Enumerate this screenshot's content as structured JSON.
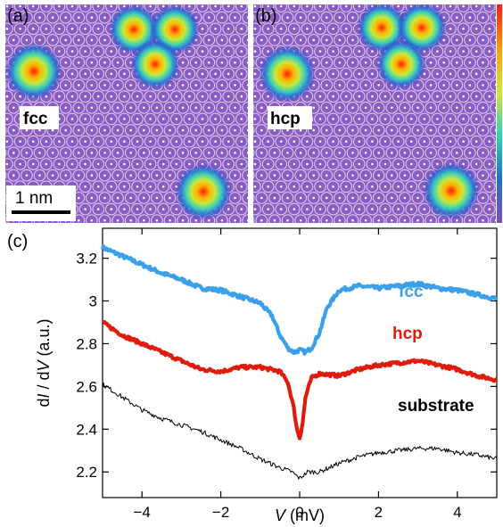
{
  "figure": {
    "panel_a": {
      "label": "(a)",
      "site_label": "fcc"
    },
    "panel_b": {
      "label": "(b)",
      "site_label": "hcp"
    },
    "panel_c": {
      "label": "(c)"
    },
    "scale_bar": {
      "label": "1 nm"
    },
    "colors": {
      "lattice_bg": "#8a5cc4",
      "atom_ring": "#ffffff",
      "fcc": "#3aa0ea",
      "hcp": "#e01b0e",
      "substrate": "#000000"
    }
  },
  "chart_data": {
    "type": "line",
    "xlabel_italic": "V",
    "xlabel_unit": " (mV)",
    "ylabel_d1": "d",
    "ylabel_i": "I",
    "ylabel_mid": " / d",
    "ylabel_v": "V",
    "ylabel_unit": " (a.u.)",
    "xlim": [
      -5,
      5
    ],
    "ylim": [
      2.08,
      3.34
    ],
    "xticks": [
      -4,
      -2,
      0,
      2,
      4
    ],
    "xtick_labels": [
      "−4",
      "−2",
      "0",
      "2",
      "4"
    ],
    "yticks": [
      2.2,
      2.4,
      2.6,
      2.8,
      3.0,
      3.2
    ],
    "ytick_labels": [
      "2.2",
      "2.4",
      "2.6",
      "2.8",
      "3",
      "3.2"
    ],
    "grid": false,
    "series": [
      {
        "name": "fcc",
        "color": "#3aa0ea",
        "x": [
          -5,
          -4.5,
          -4,
          -3.5,
          -3,
          -2.5,
          -2,
          -1.5,
          -1,
          -0.7,
          -0.5,
          -0.3,
          -0.15,
          0,
          0.15,
          0.3,
          0.5,
          0.7,
          1,
          1.5,
          2,
          2.5,
          3,
          3.5,
          4,
          4.5,
          5
        ],
        "y": [
          3.25,
          3.21,
          3.17,
          3.13,
          3.1,
          3.06,
          3.05,
          3.02,
          2.99,
          2.93,
          2.84,
          2.78,
          2.76,
          2.77,
          2.76,
          2.78,
          2.85,
          2.97,
          3.05,
          3.07,
          3.06,
          3.07,
          3.08,
          3.06,
          3.05,
          3.03,
          3.01
        ]
      },
      {
        "name": "hcp",
        "color": "#e01b0e",
        "x": [
          -5,
          -4.5,
          -4,
          -3.5,
          -3,
          -2.5,
          -2,
          -1.5,
          -1,
          -0.5,
          -0.3,
          -0.15,
          -0.07,
          0,
          0.07,
          0.15,
          0.3,
          0.5,
          1,
          1.5,
          2,
          2.5,
          3,
          3.5,
          4,
          4.5,
          5
        ],
        "y": [
          2.9,
          2.84,
          2.8,
          2.76,
          2.72,
          2.68,
          2.67,
          2.69,
          2.69,
          2.67,
          2.62,
          2.5,
          2.4,
          2.36,
          2.42,
          2.55,
          2.64,
          2.66,
          2.65,
          2.68,
          2.7,
          2.71,
          2.72,
          2.7,
          2.68,
          2.65,
          2.63
        ]
      },
      {
        "name": "substrate",
        "color": "#000000",
        "x": [
          -5,
          -4.5,
          -4,
          -3.5,
          -3,
          -2.5,
          -2,
          -1.5,
          -1,
          -0.5,
          -0.2,
          0,
          0.2,
          0.5,
          1,
          1.5,
          2,
          2.5,
          3,
          3.5,
          4,
          4.5,
          5
        ],
        "y": [
          2.61,
          2.55,
          2.49,
          2.45,
          2.42,
          2.39,
          2.35,
          2.31,
          2.26,
          2.22,
          2.2,
          2.17,
          2.2,
          2.2,
          2.24,
          2.27,
          2.29,
          2.3,
          2.31,
          2.31,
          2.29,
          2.28,
          2.26
        ]
      }
    ]
  }
}
